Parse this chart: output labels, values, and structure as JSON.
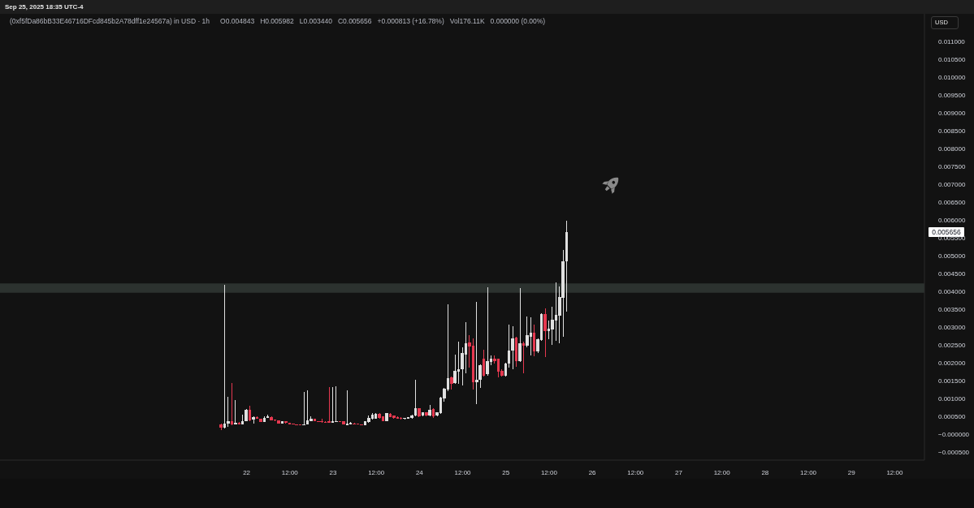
{
  "chart_data": {
    "type": "candlestick",
    "title": "(0xf5fDa86bB33E46716DFcd845b2A78dff1e24567a) in USD · 1h",
    "subtitle": "Sep 25, 2025 18:35 UTC-4",
    "annotations": [
      "O0.004843",
      "H0.005982",
      "L0.003440",
      "C0.005656",
      "+0.000813 (+16.78%)",
      "Vol176.11K",
      "0.000000 (0.00%)",
      "USD",
      "0.005656"
    ],
    "x": [
      "2025-09-21T17:00",
      "2025-09-21T18:00",
      "2025-09-21T19:00",
      "2025-09-21T20:00",
      "2025-09-21T21:00",
      "2025-09-21T22:00",
      "2025-09-21T23:00",
      "2025-09-22T00:00",
      "2025-09-22T01:00",
      "2025-09-22T02:00",
      "2025-09-22T03:00",
      "2025-09-22T04:00",
      "2025-09-22T05:00",
      "2025-09-22T06:00",
      "2025-09-22T07:00",
      "2025-09-22T08:00",
      "2025-09-22T09:00",
      "2025-09-22T10:00",
      "2025-09-22T11:00",
      "2025-09-22T12:00",
      "2025-09-22T13:00",
      "2025-09-22T14:00",
      "2025-09-22T15:00",
      "2025-09-22T16:00",
      "2025-09-22T17:00",
      "2025-09-22T18:00",
      "2025-09-22T19:00",
      "2025-09-22T20:00",
      "2025-09-22T21:00",
      "2025-09-22T22:00",
      "2025-09-22T23:00",
      "2025-09-23T00:00",
      "2025-09-23T01:00",
      "2025-09-23T02:00",
      "2025-09-23T03:00",
      "2025-09-23T04:00",
      "2025-09-23T05:00",
      "2025-09-23T06:00",
      "2025-09-23T07:00",
      "2025-09-23T08:00",
      "2025-09-23T09:00",
      "2025-09-23T10:00",
      "2025-09-23T11:00",
      "2025-09-23T12:00",
      "2025-09-23T13:00",
      "2025-09-23T14:00",
      "2025-09-23T15:00",
      "2025-09-23T16:00",
      "2025-09-23T17:00",
      "2025-09-23T18:00",
      "2025-09-23T19:00",
      "2025-09-23T20:00",
      "2025-09-23T21:00",
      "2025-09-23T22:00",
      "2025-09-23T23:00",
      "2025-09-24T00:00",
      "2025-09-24T01:00",
      "2025-09-24T02:00",
      "2025-09-24T03:00",
      "2025-09-24T04:00",
      "2025-09-24T05:00",
      "2025-09-24T06:00",
      "2025-09-24T07:00",
      "2025-09-24T08:00",
      "2025-09-24T09:00",
      "2025-09-24T10:00",
      "2025-09-24T11:00",
      "2025-09-24T12:00",
      "2025-09-24T13:00",
      "2025-09-24T14:00",
      "2025-09-24T15:00",
      "2025-09-24T16:00",
      "2025-09-24T17:00",
      "2025-09-24T18:00",
      "2025-09-24T19:00",
      "2025-09-24T20:00",
      "2025-09-24T21:00",
      "2025-09-24T22:00",
      "2025-09-24T23:00",
      "2025-09-25T00:00",
      "2025-09-25T01:00",
      "2025-09-25T02:00",
      "2025-09-25T03:00",
      "2025-09-25T04:00",
      "2025-09-25T05:00",
      "2025-09-25T06:00",
      "2025-09-25T07:00",
      "2025-09-25T08:00",
      "2025-09-25T09:00",
      "2025-09-25T10:00",
      "2025-09-25T11:00",
      "2025-09-25T12:00",
      "2025-09-25T13:00",
      "2025-09-25T14:00",
      "2025-09-25T15:00",
      "2025-09-25T16:00",
      "2025-09-25T17:00"
    ],
    "ohlc": [
      [
        0.00028,
        0.00029,
        0.00011,
        0.00017
      ],
      [
        0.00017,
        0.00419,
        0.00015,
        0.0003
      ],
      [
        0.0003,
        0.00104,
        0.0002,
        0.00035
      ],
      [
        0.00036,
        0.00142,
        0.00025,
        0.00027
      ],
      [
        0.00027,
        0.00096,
        0.00026,
        0.00032
      ],
      [
        0.00032,
        0.00033,
        0.00026,
        0.00027
      ],
      [
        0.00027,
        0.00055,
        0.00026,
        0.00036
      ],
      [
        0.00036,
        0.0007,
        0.00035,
        0.00069
      ],
      [
        0.00069,
        0.0008,
        0.00037,
        0.00039
      ],
      [
        0.0004,
        0.0005,
        0.0003,
        0.00048
      ],
      [
        0.00048,
        0.0005,
        0.00042,
        0.00043
      ],
      [
        0.00043,
        0.00044,
        0.00033,
        0.00034
      ],
      [
        0.00034,
        0.0005,
        0.00033,
        0.00046
      ],
      [
        0.00046,
        0.00055,
        0.00045,
        0.00049
      ],
      [
        0.00048,
        0.00049,
        0.00038,
        0.00039
      ],
      [
        0.00039,
        0.0004,
        0.00037,
        0.00038
      ],
      [
        0.00038,
        0.00039,
        0.00029,
        0.0003
      ],
      [
        0.0003,
        0.00037,
        0.00029,
        0.00036
      ],
      [
        0.00036,
        0.00037,
        0.0003,
        0.00031
      ],
      [
        0.00031,
        0.00032,
        0.00027,
        0.00028
      ],
      [
        0.00028,
        0.00029,
        0.00026,
        0.00027
      ],
      [
        0.00027,
        0.00028,
        0.00025,
        0.00026
      ],
      [
        0.00026,
        0.00027,
        0.00025,
        0.00025
      ],
      [
        0.00025,
        0.00119,
        0.00024,
        0.00028
      ],
      [
        0.00027,
        0.00122,
        0.00026,
        0.00039
      ],
      [
        0.00037,
        0.00049,
        0.00036,
        0.00043
      ],
      [
        0.00043,
        0.00044,
        0.00035,
        0.00036
      ],
      [
        0.00036,
        0.00037,
        0.00033,
        0.00034
      ],
      [
        0.00035,
        0.00043,
        0.00032,
        0.00033
      ],
      [
        0.00034,
        0.00035,
        0.00032,
        0.00033
      ],
      [
        0.00035,
        0.00131,
        0.00031,
        0.00032
      ],
      [
        0.00032,
        0.00131,
        0.00031,
        0.00035
      ],
      [
        0.00034,
        0.00134,
        0.00033,
        0.00037
      ],
      [
        0.00036,
        0.00037,
        0.00034,
        0.00035
      ],
      [
        0.00035,
        0.00036,
        0.00026,
        0.00027
      ],
      [
        0.00025,
        0.00123,
        0.00024,
        0.0003
      ],
      [
        0.00028,
        0.00033,
        0.00027,
        0.00032
      ],
      [
        0.0003,
        0.00031,
        0.00027,
        0.00028
      ],
      [
        0.00028,
        0.00029,
        0.00026,
        0.00027
      ],
      [
        0.00027,
        0.00028,
        0.00025,
        0.00026
      ],
      [
        0.00025,
        0.00037,
        0.00024,
        0.00036
      ],
      [
        0.00033,
        0.00051,
        0.00032,
        0.00045
      ],
      [
        0.00042,
        0.00058,
        0.00041,
        0.00054
      ],
      [
        0.00043,
        0.00058,
        0.00042,
        0.00057
      ],
      [
        0.00057,
        0.00058,
        0.00044,
        0.00045
      ],
      [
        0.00049,
        0.0005,
        0.00035,
        0.00036
      ],
      [
        0.00036,
        0.00059,
        0.00035,
        0.00058
      ],
      [
        0.00057,
        0.00058,
        0.00047,
        0.00048
      ],
      [
        0.00052,
        0.00053,
        0.00044,
        0.00045
      ],
      [
        0.00048,
        0.00049,
        0.00042,
        0.00043
      ],
      [
        0.00046,
        0.00047,
        0.00041,
        0.00042
      ],
      [
        0.00042,
        0.00045,
        0.00041,
        0.00044
      ],
      [
        0.00043,
        0.00048,
        0.00042,
        0.00047
      ],
      [
        0.00045,
        0.00054,
        0.00044,
        0.00053
      ],
      [
        0.00052,
        0.00152,
        0.0005,
        0.00073
      ],
      [
        0.00072,
        0.00073,
        0.00047,
        0.00049
      ],
      [
        0.00051,
        0.00062,
        0.0005,
        0.0006
      ],
      [
        0.0006,
        0.00061,
        0.0005,
        0.00052
      ],
      [
        0.00052,
        0.00081,
        0.0005,
        0.00068
      ],
      [
        0.0007,
        0.00072,
        0.00045,
        0.00049
      ],
      [
        0.00051,
        0.00061,
        0.0005,
        0.0006
      ],
      [
        0.00058,
        0.00104,
        0.00056,
        0.00102
      ],
      [
        0.001,
        0.0013,
        0.00091,
        0.00127
      ],
      [
        0.00125,
        0.00364,
        0.0012,
        0.00157
      ],
      [
        0.00158,
        0.0016,
        0.00125,
        0.0014
      ],
      [
        0.00142,
        0.00222,
        0.0014,
        0.00178
      ],
      [
        0.00175,
        0.00258,
        0.0014,
        0.00182
      ],
      [
        0.00182,
        0.00242,
        0.00136,
        0.00226
      ],
      [
        0.00223,
        0.00314,
        0.0017,
        0.00255
      ],
      [
        0.00256,
        0.00277,
        0.00186,
        0.00246
      ],
      [
        0.00248,
        0.00269,
        0.00125,
        0.00146
      ],
      [
        0.00146,
        0.00371,
        0.00083,
        0.00152
      ],
      [
        0.00152,
        0.00195,
        0.00129,
        0.00193
      ],
      [
        0.00212,
        0.00235,
        0.0016,
        0.00164
      ],
      [
        0.00167,
        0.00411,
        0.00163,
        0.00205
      ],
      [
        0.00202,
        0.0022,
        0.00192,
        0.0021
      ],
      [
        0.00212,
        0.0022,
        0.00198,
        0.00205
      ],
      [
        0.0021,
        0.00212,
        0.00159,
        0.00174
      ],
      [
        0.00178,
        0.00182,
        0.00161,
        0.00163
      ],
      [
        0.00164,
        0.002,
        0.00162,
        0.00197
      ],
      [
        0.00197,
        0.00307,
        0.00186,
        0.00233
      ],
      [
        0.00233,
        0.00303,
        0.00182,
        0.00269
      ],
      [
        0.0027,
        0.00273,
        0.00189,
        0.00205
      ],
      [
        0.00205,
        0.00409,
        0.00202,
        0.00254
      ],
      [
        0.00255,
        0.00258,
        0.0017,
        0.00248
      ],
      [
        0.00248,
        0.0033,
        0.00244,
        0.00277
      ],
      [
        0.00273,
        0.00326,
        0.0022,
        0.00284
      ],
      [
        0.00284,
        0.00307,
        0.00218,
        0.00231
      ],
      [
        0.00231,
        0.00268,
        0.00226,
        0.00265
      ],
      [
        0.00263,
        0.00338,
        0.00261,
        0.00336
      ],
      [
        0.00337,
        0.00352,
        0.00216,
        0.00288
      ],
      [
        0.00288,
        0.00318,
        0.00265,
        0.00295
      ],
      [
        0.00294,
        0.00356,
        0.0025,
        0.0032
      ],
      [
        0.00318,
        0.00424,
        0.00261,
        0.00333
      ],
      [
        0.00332,
        0.00413,
        0.00254,
        0.00383
      ],
      [
        0.00381,
        0.00515,
        0.00273,
        0.004843
      ],
      [
        0.004843,
        0.005982,
        0.00344,
        0.005656
      ]
    ],
    "colors": [
      "#e5384f",
      "#e0e0e0",
      "#e0e0e0",
      "#e5384f",
      "#e0e0e0",
      "#e5384f",
      "#e0e0e0",
      "#e0e0e0",
      "#e5384f",
      "#e0e0e0",
      "#e5384f",
      "#e5384f",
      "#e0e0e0",
      "#e0e0e0",
      "#e5384f",
      "#e5384f",
      "#e5384f",
      "#e0e0e0",
      "#e5384f",
      "#e5384f",
      "#e5384f",
      "#e5384f",
      "#e5384f",
      "#e0e0e0",
      "#e0e0e0",
      "#e0e0e0",
      "#e5384f",
      "#e5384f",
      "#e5384f",
      "#e5384f",
      "#e5384f",
      "#e0e0e0",
      "#e0e0e0",
      "#e5384f",
      "#e5384f",
      "#e0e0e0",
      "#e0e0e0",
      "#e5384f",
      "#e5384f",
      "#e5384f",
      "#e0e0e0",
      "#e0e0e0",
      "#e0e0e0",
      "#e0e0e0",
      "#e5384f",
      "#e5384f",
      "#e0e0e0",
      "#e5384f",
      "#e5384f",
      "#e5384f",
      "#e5384f",
      "#e0e0e0",
      "#e0e0e0",
      "#e0e0e0",
      "#e0e0e0",
      "#e5384f",
      "#e0e0e0",
      "#e5384f",
      "#e0e0e0",
      "#e5384f",
      "#e0e0e0",
      "#e0e0e0",
      "#e0e0e0",
      "#e0e0e0",
      "#e5384f",
      "#e0e0e0",
      "#e0e0e0",
      "#e0e0e0",
      "#e0e0e0",
      "#e5384f",
      "#e5384f",
      "#e0e0e0",
      "#e0e0e0",
      "#e5384f",
      "#e0e0e0",
      "#e0e0e0",
      "#e5384f",
      "#e5384f",
      "#e5384f",
      "#e0e0e0",
      "#e0e0e0",
      "#e0e0e0",
      "#e5384f",
      "#e0e0e0",
      "#e5384f",
      "#e0e0e0",
      "#e0e0e0",
      "#e5384f",
      "#e0e0e0",
      "#e0e0e0",
      "#e5384f",
      "#e0e0e0",
      "#e0e0e0",
      "#e0e0e0",
      "#e0e0e0",
      "#e0e0e0",
      "#e0e0e0"
    ],
    "xlim": [
      "2025-09-19T03:30",
      "2025-09-29T20:15"
    ],
    "xticks": [
      {
        "value": "2025-09-22T00:00",
        "label": "22"
      },
      {
        "value": "2025-09-22T12:00",
        "label": "12:00"
      },
      {
        "value": "2025-09-23T00:00",
        "label": "23"
      },
      {
        "value": "2025-09-23T12:00",
        "label": "12:00"
      },
      {
        "value": "2025-09-24T00:00",
        "label": "24"
      },
      {
        "value": "2025-09-24T12:00",
        "label": "12:00"
      },
      {
        "value": "2025-09-25T00:00",
        "label": "25"
      },
      {
        "value": "2025-09-25T12:00",
        "label": "12:00"
      },
      {
        "value": "2025-09-26T00:00",
        "label": "26"
      },
      {
        "value": "2025-09-26T12:00",
        "label": "12:00"
      },
      {
        "value": "2025-09-27T00:00",
        "label": "27"
      },
      {
        "value": "2025-09-27T12:00",
        "label": "12:00"
      },
      {
        "value": "2025-09-28T00:00",
        "label": "28"
      },
      {
        "value": "2025-09-28T12:00",
        "label": "12:00"
      },
      {
        "value": "2025-09-29T00:00",
        "label": "29"
      },
      {
        "value": "2025-09-29T12:00",
        "label": "12:00"
      }
    ],
    "ylim": [
      -0.00073,
      0.01177
    ],
    "yticks": [
      {
        "value": -0.0005,
        "label": "−0.000500"
      },
      {
        "value": 0,
        "label": "−0.000000"
      },
      {
        "value": 0.0005,
        "label": "0.000500"
      },
      {
        "value": 0.001,
        "label": "0.001000"
      },
      {
        "value": 0.0015,
        "label": "0.001500"
      },
      {
        "value": 0.002,
        "label": "0.002000"
      },
      {
        "value": 0.0025,
        "label": "0.002500"
      },
      {
        "value": 0.003,
        "label": "0.003000"
      },
      {
        "value": 0.0035,
        "label": "0.003500"
      },
      {
        "value": 0.004,
        "label": "0.004000"
      },
      {
        "value": 0.0045,
        "label": "0.004500"
      },
      {
        "value": 0.005,
        "label": "0.005000"
      },
      {
        "value": 0.0055,
        "label": "0.005500"
      },
      {
        "value": 0.006,
        "label": "0.006000"
      },
      {
        "value": 0.0065,
        "label": "0.006500"
      },
      {
        "value": 0.007,
        "label": "0.007000"
      },
      {
        "value": 0.0075,
        "label": "0.007500"
      },
      {
        "value": 0.008,
        "label": "0.008000"
      },
      {
        "value": 0.0085,
        "label": "0.008500"
      },
      {
        "value": 0.009,
        "label": "0.009000"
      },
      {
        "value": 0.0095,
        "label": "0.009500"
      },
      {
        "value": 0.01,
        "label": "0.010000"
      },
      {
        "value": 0.0105,
        "label": "0.010500"
      },
      {
        "value": 0.011,
        "label": "0.011000"
      }
    ],
    "bands": [
      {
        "axis": "y",
        "from": 0.00396,
        "to": 0.00422,
        "color": "#2c322f"
      }
    ]
  }
}
